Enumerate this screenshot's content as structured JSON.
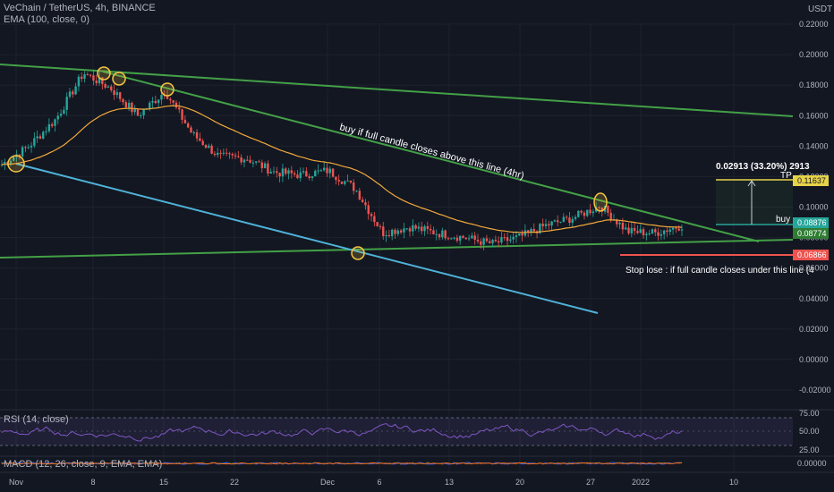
{
  "symbol": {
    "title": "VeChain / TetherUS, 4h, BINANCE",
    "ema_label": "EMA (100, close, 0)",
    "rsi_label": "RSI (14, close)",
    "macd_label": "MACD (12, 26, close, 9, EMA, EMA)"
  },
  "colors": {
    "background": "#131722",
    "grid": "#1e222d",
    "candle_up": "#26a69a",
    "candle_down": "#ef5350",
    "ema": "#f2a93b",
    "trendline": "#43a047",
    "support_line": "#4fb3d9",
    "rsi": "#7e57c2",
    "marker": "#f5c542"
  },
  "chart_data": {
    "type": "candlestick",
    "price_axis": {
      "unit": "USDT",
      "range": [
        -0.022,
        0.226
      ],
      "ticks": [
        "0.22000",
        "0.20000",
        "0.18000",
        "0.16000",
        "0.14000",
        "0.12000",
        "0.10000",
        "0.08000",
        "0.06000",
        "0.04000",
        "0.02000",
        "0.00000",
        "-0.02000"
      ]
    },
    "time_axis": {
      "labels": [
        "Nov",
        "8",
        "15",
        "22",
        "Dec",
        "6",
        "13",
        "20",
        "27",
        "2022",
        "10"
      ]
    },
    "price_path": [
      {
        "t": "Nov 1",
        "close": 0.128
      },
      {
        "t": "Nov 4",
        "close": 0.14
      },
      {
        "t": "Nov 7",
        "close": 0.158
      },
      {
        "t": "Nov 9",
        "close": 0.188
      },
      {
        "t": "Nov 10",
        "close": 0.178
      },
      {
        "t": "Nov 12",
        "close": 0.16
      },
      {
        "t": "Nov 14",
        "close": 0.176
      },
      {
        "t": "Nov 16",
        "close": 0.148
      },
      {
        "t": "Nov 19",
        "close": 0.133
      },
      {
        "t": "Nov 22",
        "close": 0.132
      },
      {
        "t": "Nov 25",
        "close": 0.123
      },
      {
        "t": "Nov 28",
        "close": 0.121
      },
      {
        "t": "Dec 1",
        "close": 0.124
      },
      {
        "t": "Dec 3",
        "close": 0.112
      },
      {
        "t": "Dec 4",
        "close": 0.083
      },
      {
        "t": "Dec 6",
        "close": 0.087
      },
      {
        "t": "Dec 9",
        "close": 0.083
      },
      {
        "t": "Dec 13",
        "close": 0.08
      },
      {
        "t": "Dec 17",
        "close": 0.076
      },
      {
        "t": "Dec 21",
        "close": 0.08
      },
      {
        "t": "Dec 25",
        "close": 0.088
      },
      {
        "t": "Dec 27",
        "close": 0.093
      },
      {
        "t": "Dec 28",
        "close": 0.101
      },
      {
        "t": "Dec 30",
        "close": 0.084
      },
      {
        "t": "Jan 2",
        "close": 0.083
      },
      {
        "t": "Jan 4",
        "close": 0.088
      }
    ],
    "price_labels": {
      "tp": {
        "label": "TP",
        "value": "0.11637",
        "color": "#e6d34a"
      },
      "buy": {
        "label": "buy",
        "value": "0.08876",
        "color": "#26a69a"
      },
      "ema": {
        "value": "0.08774",
        "color": "#26a69a"
      },
      "stop": {
        "value": "0.06866",
        "color": "#ef5350"
      }
    },
    "measure_label": "0.02913 (33.20%) 2913",
    "annotations": {
      "buy_note": "buy if full candle closes above this line (4hr)",
      "stop_note": "Stop lose : if full candle closes under this line (4"
    },
    "rsi_axis": {
      "ticks": [
        "75.00",
        "50.00",
        "25.00"
      ],
      "range": [
        0,
        100
      ]
    },
    "macd_axis": {
      "ticks": [
        "0.00000"
      ]
    }
  }
}
